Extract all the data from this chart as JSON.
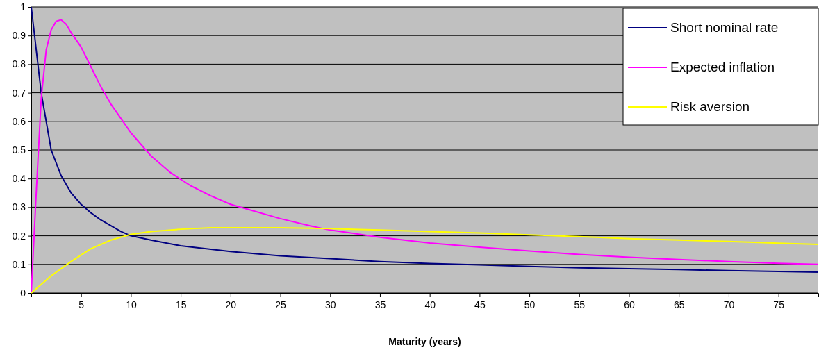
{
  "chart_data": {
    "type": "line",
    "xlabel": "Maturity (years)",
    "xlim": [
      0,
      79
    ],
    "xticks": [
      5,
      10,
      15,
      20,
      25,
      30,
      35,
      40,
      45,
      50,
      55,
      60,
      65,
      70,
      75
    ],
    "ylim": [
      0,
      1
    ],
    "yticks": [
      0,
      0.1,
      0.2,
      0.3,
      0.4,
      0.5,
      0.6,
      0.7,
      0.8,
      0.9,
      1
    ],
    "grid": "y",
    "legend": "top right",
    "marker": "none",
    "line_style": "solid",
    "series": [
      {
        "name": "Short nominal rate",
        "color": "#000080",
        "x": [
          0,
          1,
          2,
          3,
          4,
          5,
          6,
          7,
          8,
          9,
          10,
          12,
          15,
          20,
          25,
          30,
          35,
          40,
          45,
          50,
          55,
          60,
          65,
          70,
          75,
          79
        ],
        "values": [
          1,
          0.7,
          0.5,
          0.41,
          0.35,
          0.31,
          0.28,
          0.255,
          0.235,
          0.215,
          0.2,
          0.185,
          0.165,
          0.145,
          0.13,
          0.12,
          0.11,
          0.103,
          0.098,
          0.093,
          0.088,
          0.085,
          0.082,
          0.078,
          0.075,
          0.073
        ]
      },
      {
        "name": "Expected inflation",
        "color": "#ff00ff",
        "x": [
          0,
          0.5,
          1,
          1.5,
          2,
          2.5,
          3,
          3.5,
          4,
          5,
          6,
          7,
          8,
          9,
          10,
          12,
          14,
          16,
          18,
          20,
          22,
          25,
          28,
          30,
          35,
          40,
          45,
          50,
          55,
          60,
          65,
          70,
          75,
          79
        ],
        "values": [
          0,
          0.35,
          0.68,
          0.85,
          0.92,
          0.95,
          0.955,
          0.94,
          0.91,
          0.86,
          0.79,
          0.72,
          0.66,
          0.61,
          0.56,
          0.48,
          0.42,
          0.375,
          0.34,
          0.31,
          0.29,
          0.26,
          0.235,
          0.22,
          0.195,
          0.175,
          0.16,
          0.147,
          0.135,
          0.125,
          0.117,
          0.11,
          0.104,
          0.1
        ]
      },
      {
        "name": "Risk aversion",
        "color": "#ffff00",
        "x": [
          0,
          2,
          4,
          6,
          8,
          10,
          12,
          15,
          18,
          25,
          30,
          35,
          40,
          45,
          50,
          55,
          60,
          65,
          70,
          75,
          79
        ],
        "values": [
          0,
          0.06,
          0.11,
          0.155,
          0.185,
          0.205,
          0.215,
          0.223,
          0.228,
          0.228,
          0.225,
          0.22,
          0.215,
          0.21,
          0.203,
          0.197,
          0.19,
          0.185,
          0.18,
          0.174,
          0.17
        ]
      }
    ]
  }
}
